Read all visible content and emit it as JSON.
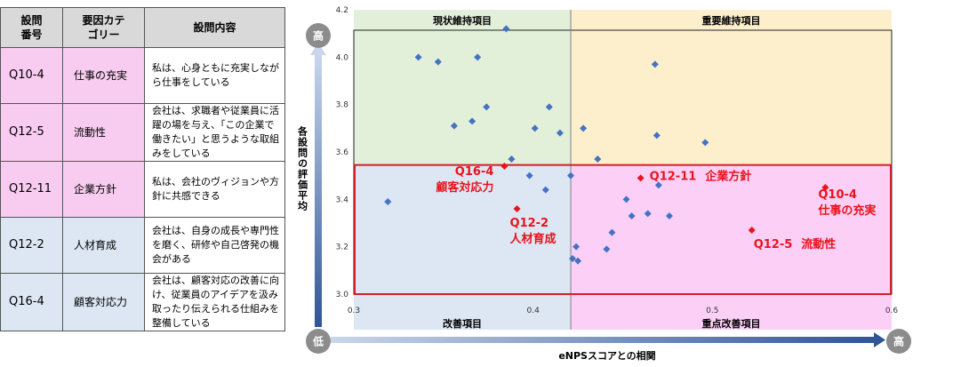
{
  "table": {
    "headers": [
      "設問\n番号",
      "要因カテ\nゴリー",
      "設問内容"
    ],
    "rows": [
      {
        "id": "Q10-4",
        "category": "仕事の充実",
        "content": "私は、心身ともに充実しながら仕事をしている",
        "tone": "pink"
      },
      {
        "id": "Q12-5",
        "category": "流動性",
        "content": "会社は、求職者や従業員に活躍の場を与え、「この企業で働きたい」と思うような取組みをしている",
        "tone": "pink"
      },
      {
        "id": "Q12-11",
        "category": "企業方針",
        "content": "私は、会社のヴィジョンや方針に共感できる",
        "tone": "pink"
      },
      {
        "id": "Q12-2",
        "category": "人材育成",
        "content": "会社は、自身の成長や専門性を磨く、研修や自己啓発の機会がある",
        "tone": "blue"
      },
      {
        "id": "Q16-4",
        "category": "顧客対応力",
        "content": "会社は、顧客対応の改善に向け、従業員のアイデアを汲み取ったり伝えられる仕組みを整備している",
        "tone": "blue"
      }
    ]
  },
  "chart_data": {
    "type": "scatter",
    "xlabel": "eNPSスコアとの相関",
    "ylabel": "各設問の評価平均",
    "xlim": [
      0.3,
      0.6
    ],
    "ylim": [
      3.0,
      4.2
    ],
    "x_ticks": [
      "0.3",
      "0.4",
      "0.5",
      "0.6"
    ],
    "y_ticks": [
      "3.0",
      "3.2",
      "3.4",
      "3.6",
      "3.8",
      "4.0",
      "4.2"
    ],
    "x_split": 0.421,
    "y_split": 3.545,
    "quadrants": {
      "top_left": "現状維持項目",
      "top_right": "重要維持項目",
      "bottom_left": "改善項目",
      "bottom_right": "重点改善項目"
    },
    "quadrant_colors": {
      "top_left": "#e2efd9",
      "top_right": "#fdefcc",
      "bottom_left": "#dde7f3",
      "bottom_right": "#fcd0f6"
    },
    "axis_low_label": "低",
    "axis_high_label": "高",
    "point_color": "#4472c4",
    "highlight_color": "#e8131c",
    "points": [
      [
        0.319,
        3.39
      ],
      [
        0.336,
        4.0
      ],
      [
        0.347,
        3.98
      ],
      [
        0.356,
        3.71
      ],
      [
        0.366,
        3.73
      ],
      [
        0.369,
        4.0
      ],
      [
        0.374,
        3.79
      ],
      [
        0.385,
        4.12
      ],
      [
        0.388,
        3.57
      ],
      [
        0.398,
        3.5
      ],
      [
        0.401,
        3.7
      ],
      [
        0.407,
        3.44
      ],
      [
        0.409,
        3.79
      ],
      [
        0.415,
        3.68
      ],
      [
        0.421,
        3.5
      ],
      [
        0.422,
        3.15
      ],
      [
        0.424,
        3.2
      ],
      [
        0.425,
        3.14
      ],
      [
        0.428,
        3.7
      ],
      [
        0.436,
        3.57
      ],
      [
        0.441,
        3.19
      ],
      [
        0.444,
        3.26
      ],
      [
        0.452,
        3.4
      ],
      [
        0.455,
        3.33
      ],
      [
        0.464,
        3.34
      ],
      [
        0.468,
        3.97
      ],
      [
        0.469,
        3.67
      ],
      [
        0.47,
        3.46
      ],
      [
        0.476,
        3.33
      ],
      [
        0.496,
        3.64
      ]
    ],
    "highlights": [
      {
        "id": "Q16-4",
        "label": "顧客対応力",
        "x": 0.384,
        "y": 3.54
      },
      {
        "id": "Q12-2",
        "label": "人材育成",
        "x": 0.391,
        "y": 3.36
      },
      {
        "id": "Q12-11",
        "label": "企業方針",
        "x": 0.46,
        "y": 3.49
      },
      {
        "id": "Q10-4",
        "label": "仕事の充実",
        "x": 0.563,
        "y": 3.45
      },
      {
        "id": "Q12-5",
        "label": "流動性",
        "x": 0.522,
        "y": 3.27
      }
    ]
  }
}
